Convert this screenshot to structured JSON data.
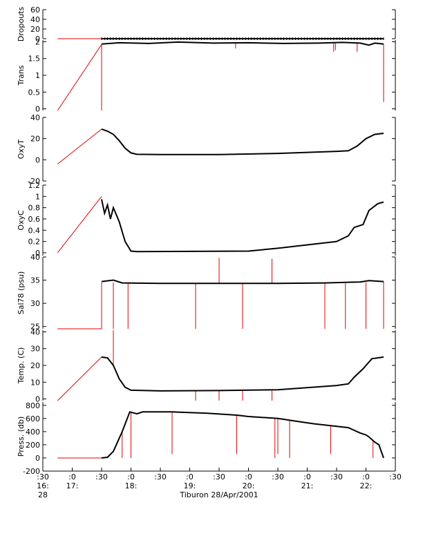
{
  "colors": {
    "trace": "#000000",
    "raw": "#e00000",
    "axis": "#000000",
    "background": "#ffffff"
  },
  "x_axis": {
    "ticks": [
      {
        "t": 0.0,
        "line1": ":30",
        "line2": "16:",
        "line3": "28"
      },
      {
        "t": 0.5,
        "line1": ":0",
        "line2": "17:",
        "line3": ""
      },
      {
        "t": 1.0,
        "line1": ":30",
        "line2": "",
        "line3": ""
      },
      {
        "t": 1.5,
        "line1": ":0",
        "line2": "18:",
        "line3": ""
      },
      {
        "t": 2.0,
        "line1": ":30",
        "line2": "",
        "line3": ""
      },
      {
        "t": 2.5,
        "line1": ":0",
        "line2": "19:",
        "line3": ""
      },
      {
        "t": 3.0,
        "line1": ":30",
        "line2": "",
        "line3": ""
      },
      {
        "t": 3.5,
        "line1": ":0",
        "line2": "20:",
        "line3": ""
      },
      {
        "t": 4.0,
        "line1": ":30",
        "line2": "",
        "line3": ""
      },
      {
        "t": 4.5,
        "line1": ":0",
        "line2": "21:",
        "line3": ""
      },
      {
        "t": 5.0,
        "line1": ":30",
        "line2": "",
        "line3": ""
      },
      {
        "t": 5.5,
        "line1": ":0",
        "line2": "22:",
        "line3": ""
      },
      {
        "t": 6.0,
        "line1": ":30",
        "line2": "",
        "line3": ""
      }
    ],
    "title": "Tiburon 28/Apr/2001"
  },
  "chart_data": [
    {
      "type": "line",
      "ylabel": "Dropouts",
      "ylim": [
        0,
        60
      ],
      "yticks": [
        0,
        20,
        40,
        60
      ],
      "series": [
        {
          "role": "raw",
          "points": [
            [
              0.25,
              0
            ],
            [
              1.0,
              0
            ]
          ]
        },
        {
          "role": "trace",
          "points": [
            [
              1.0,
              0
            ],
            [
              5.8,
              0
            ]
          ]
        }
      ]
    },
    {
      "type": "line",
      "ylabel": "Trans",
      "ylim": [
        -0.05,
        2.05
      ],
      "yticks": [
        0.0,
        0.5,
        1.0,
        1.5,
        2.0
      ],
      "series": [
        {
          "role": "raw",
          "points": [
            [
              0.25,
              -0.05
            ],
            [
              1.0,
              1.92
            ]
          ]
        },
        {
          "role": "trace",
          "points": [
            [
              1.0,
              1.93
            ],
            [
              1.3,
              1.97
            ],
            [
              1.8,
              1.95
            ],
            [
              2.3,
              1.99
            ],
            [
              2.9,
              1.96
            ],
            [
              3.5,
              1.97
            ],
            [
              4.1,
              1.95
            ],
            [
              4.7,
              1.96
            ],
            [
              5.1,
              1.98
            ],
            [
              5.4,
              1.96
            ],
            [
              5.55,
              1.9
            ],
            [
              5.65,
              1.96
            ],
            [
              5.8,
              1.93
            ]
          ]
        }
      ],
      "spikes": [
        {
          "t": 1.0,
          "y1": 1.9,
          "y2": 1.1
        },
        {
          "t": 1.0,
          "y1": 1.9,
          "y2": -0.05
        },
        {
          "t": 3.28,
          "y1": 1.95,
          "y2": 1.8
        },
        {
          "t": 4.95,
          "y1": 1.95,
          "y2": 1.7
        },
        {
          "t": 4.98,
          "y1": 1.95,
          "y2": 1.75
        },
        {
          "t": 5.35,
          "y1": 1.95,
          "y2": 1.7
        },
        {
          "t": 5.8,
          "y1": 1.93,
          "y2": 0.2
        }
      ]
    },
    {
      "type": "line",
      "ylabel": "OxyT",
      "ylim": [
        -20,
        40
      ],
      "yticks": [
        -20,
        0,
        20,
        40
      ],
      "series": [
        {
          "role": "raw",
          "points": [
            [
              0.25,
              -4
            ],
            [
              1.0,
              29
            ]
          ]
        },
        {
          "role": "trace",
          "points": [
            [
              1.0,
              29
            ],
            [
              1.1,
              27
            ],
            [
              1.2,
              24
            ],
            [
              1.3,
              18
            ],
            [
              1.4,
              11
            ],
            [
              1.5,
              6.5
            ],
            [
              1.6,
              5.2
            ],
            [
              2.0,
              5
            ],
            [
              3.0,
              5
            ],
            [
              4.0,
              6
            ],
            [
              5.0,
              8
            ],
            [
              5.2,
              8.5
            ],
            [
              5.35,
              13
            ],
            [
              5.5,
              20
            ],
            [
              5.65,
              24
            ],
            [
              5.8,
              25
            ]
          ]
        }
      ]
    },
    {
      "type": "line",
      "ylabel": "OxyC",
      "ylim": [
        -0.05,
        1.2
      ],
      "yticks": [
        0.0,
        0.2,
        0.4,
        0.6,
        0.8,
        1.0,
        1.2
      ],
      "series": [
        {
          "role": "raw",
          "points": [
            [
              0.25,
              0
            ],
            [
              1.0,
              1.0
            ]
          ]
        },
        {
          "role": "trace",
          "points": [
            [
              1.0,
              0.95
            ],
            [
              1.05,
              0.7
            ],
            [
              1.1,
              0.85
            ],
            [
              1.15,
              0.6
            ],
            [
              1.2,
              0.8
            ],
            [
              1.3,
              0.55
            ],
            [
              1.4,
              0.2
            ],
            [
              1.5,
              0.03
            ],
            [
              1.6,
              0.02
            ],
            [
              3.5,
              0.03
            ],
            [
              4.0,
              0.08
            ],
            [
              4.5,
              0.14
            ],
            [
              5.0,
              0.2
            ],
            [
              5.2,
              0.3
            ],
            [
              5.3,
              0.45
            ],
            [
              5.45,
              0.5
            ],
            [
              5.55,
              0.75
            ],
            [
              5.7,
              0.87
            ],
            [
              5.8,
              0.9
            ]
          ]
        }
      ]
    },
    {
      "type": "line",
      "ylabel": "Sal78 (psu)",
      "ylim": [
        24.5,
        40
      ],
      "yticks": [
        25,
        30,
        35,
        40
      ],
      "series": [
        {
          "role": "raw",
          "points": [
            [
              0.25,
              24.5
            ],
            [
              1.0,
              24.5
            ]
          ]
        },
        {
          "role": "trace",
          "points": [
            [
              1.0,
              34.7
            ],
            [
              1.2,
              35.0
            ],
            [
              1.35,
              34.4
            ],
            [
              2.0,
              34.3
            ],
            [
              3.0,
              34.3
            ],
            [
              4.0,
              34.3
            ],
            [
              4.8,
              34.4
            ],
            [
              5.4,
              34.6
            ],
            [
              5.55,
              34.9
            ],
            [
              5.8,
              34.7
            ]
          ]
        }
      ],
      "spikes": [
        {
          "t": 1.0,
          "y1": 34.5,
          "y2": 24.5
        },
        {
          "t": 1.2,
          "y1": 34.5,
          "y2": 24.5
        },
        {
          "t": 1.45,
          "y1": 34.3,
          "y2": 24.5
        },
        {
          "t": 2.6,
          "y1": 34.3,
          "y2": 24.5
        },
        {
          "t": 3.0,
          "y1": 34.3,
          "y2": 39.8
        },
        {
          "t": 3.4,
          "y1": 34.3,
          "y2": 24.5
        },
        {
          "t": 3.9,
          "y1": 34.3,
          "y2": 39.6
        },
        {
          "t": 4.8,
          "y1": 34.3,
          "y2": 24.5
        },
        {
          "t": 5.15,
          "y1": 34.3,
          "y2": 24.5
        },
        {
          "t": 5.5,
          "y1": 34.5,
          "y2": 24.5
        },
        {
          "t": 5.8,
          "y1": 34.7,
          "y2": 24.5
        }
      ]
    },
    {
      "type": "line",
      "ylabel": "Temp. (C)",
      "ylim": [
        -1,
        41
      ],
      "yticks": [
        0,
        10,
        20,
        30,
        40
      ],
      "series": [
        {
          "role": "raw",
          "points": [
            [
              0.25,
              -1
            ],
            [
              1.0,
              25
            ]
          ]
        },
        {
          "role": "trace",
          "points": [
            [
              1.0,
              25
            ],
            [
              1.1,
              24.5
            ],
            [
              1.2,
              20
            ],
            [
              1.3,
              12
            ],
            [
              1.4,
              7
            ],
            [
              1.5,
              5.2
            ],
            [
              2.0,
              4.8
            ],
            [
              3.0,
              5
            ],
            [
              4.0,
              5.5
            ],
            [
              5.0,
              8
            ],
            [
              5.2,
              9
            ],
            [
              5.3,
              13
            ],
            [
              5.45,
              18
            ],
            [
              5.6,
              24
            ],
            [
              5.8,
              25
            ]
          ]
        }
      ],
      "spikes": [
        {
          "t": 1.2,
          "y1": 20,
          "y2": 41
        },
        {
          "t": 2.6,
          "y1": 5,
          "y2": -1
        },
        {
          "t": 3.0,
          "y1": 5,
          "y2": -1
        },
        {
          "t": 3.4,
          "y1": 5,
          "y2": -1
        },
        {
          "t": 3.9,
          "y1": 5,
          "y2": -1
        }
      ]
    },
    {
      "type": "line",
      "ylabel": "Press. (db)",
      "ylim": [
        -200,
        850
      ],
      "yticks": [
        -200,
        0,
        200,
        400,
        600,
        800
      ],
      "series": [
        {
          "role": "raw",
          "points": [
            [
              0.25,
              0
            ],
            [
              1.0,
              0
            ]
          ]
        },
        {
          "role": "trace",
          "points": [
            [
              1.0,
              0
            ],
            [
              1.1,
              10
            ],
            [
              1.2,
              100
            ],
            [
              1.35,
              400
            ],
            [
              1.48,
              700
            ],
            [
              1.6,
              670
            ],
            [
              1.7,
              700
            ],
            [
              2.2,
              700
            ],
            [
              2.8,
              680
            ],
            [
              3.3,
              650
            ],
            [
              3.5,
              630
            ],
            [
              4.0,
              600
            ],
            [
              4.3,
              560
            ],
            [
              4.6,
              520
            ],
            [
              4.9,
              490
            ],
            [
              5.2,
              460
            ],
            [
              5.4,
              380
            ],
            [
              5.5,
              350
            ],
            [
              5.55,
              320
            ],
            [
              5.65,
              240
            ],
            [
              5.72,
              200
            ],
            [
              5.8,
              0
            ]
          ]
        }
      ],
      "spikes": [
        {
          "t": 1.35,
          "y1": 400,
          "y2": 0
        },
        {
          "t": 1.5,
          "y1": 700,
          "y2": 0
        },
        {
          "t": 2.2,
          "y1": 700,
          "y2": 60
        },
        {
          "t": 3.3,
          "y1": 650,
          "y2": 60
        },
        {
          "t": 3.95,
          "y1": 610,
          "y2": 0
        },
        {
          "t": 4.0,
          "y1": 600,
          "y2": 60
        },
        {
          "t": 4.2,
          "y1": 580,
          "y2": 0
        },
        {
          "t": 4.9,
          "y1": 490,
          "y2": 60
        },
        {
          "t": 5.62,
          "y1": 260,
          "y2": 0
        }
      ]
    }
  ]
}
